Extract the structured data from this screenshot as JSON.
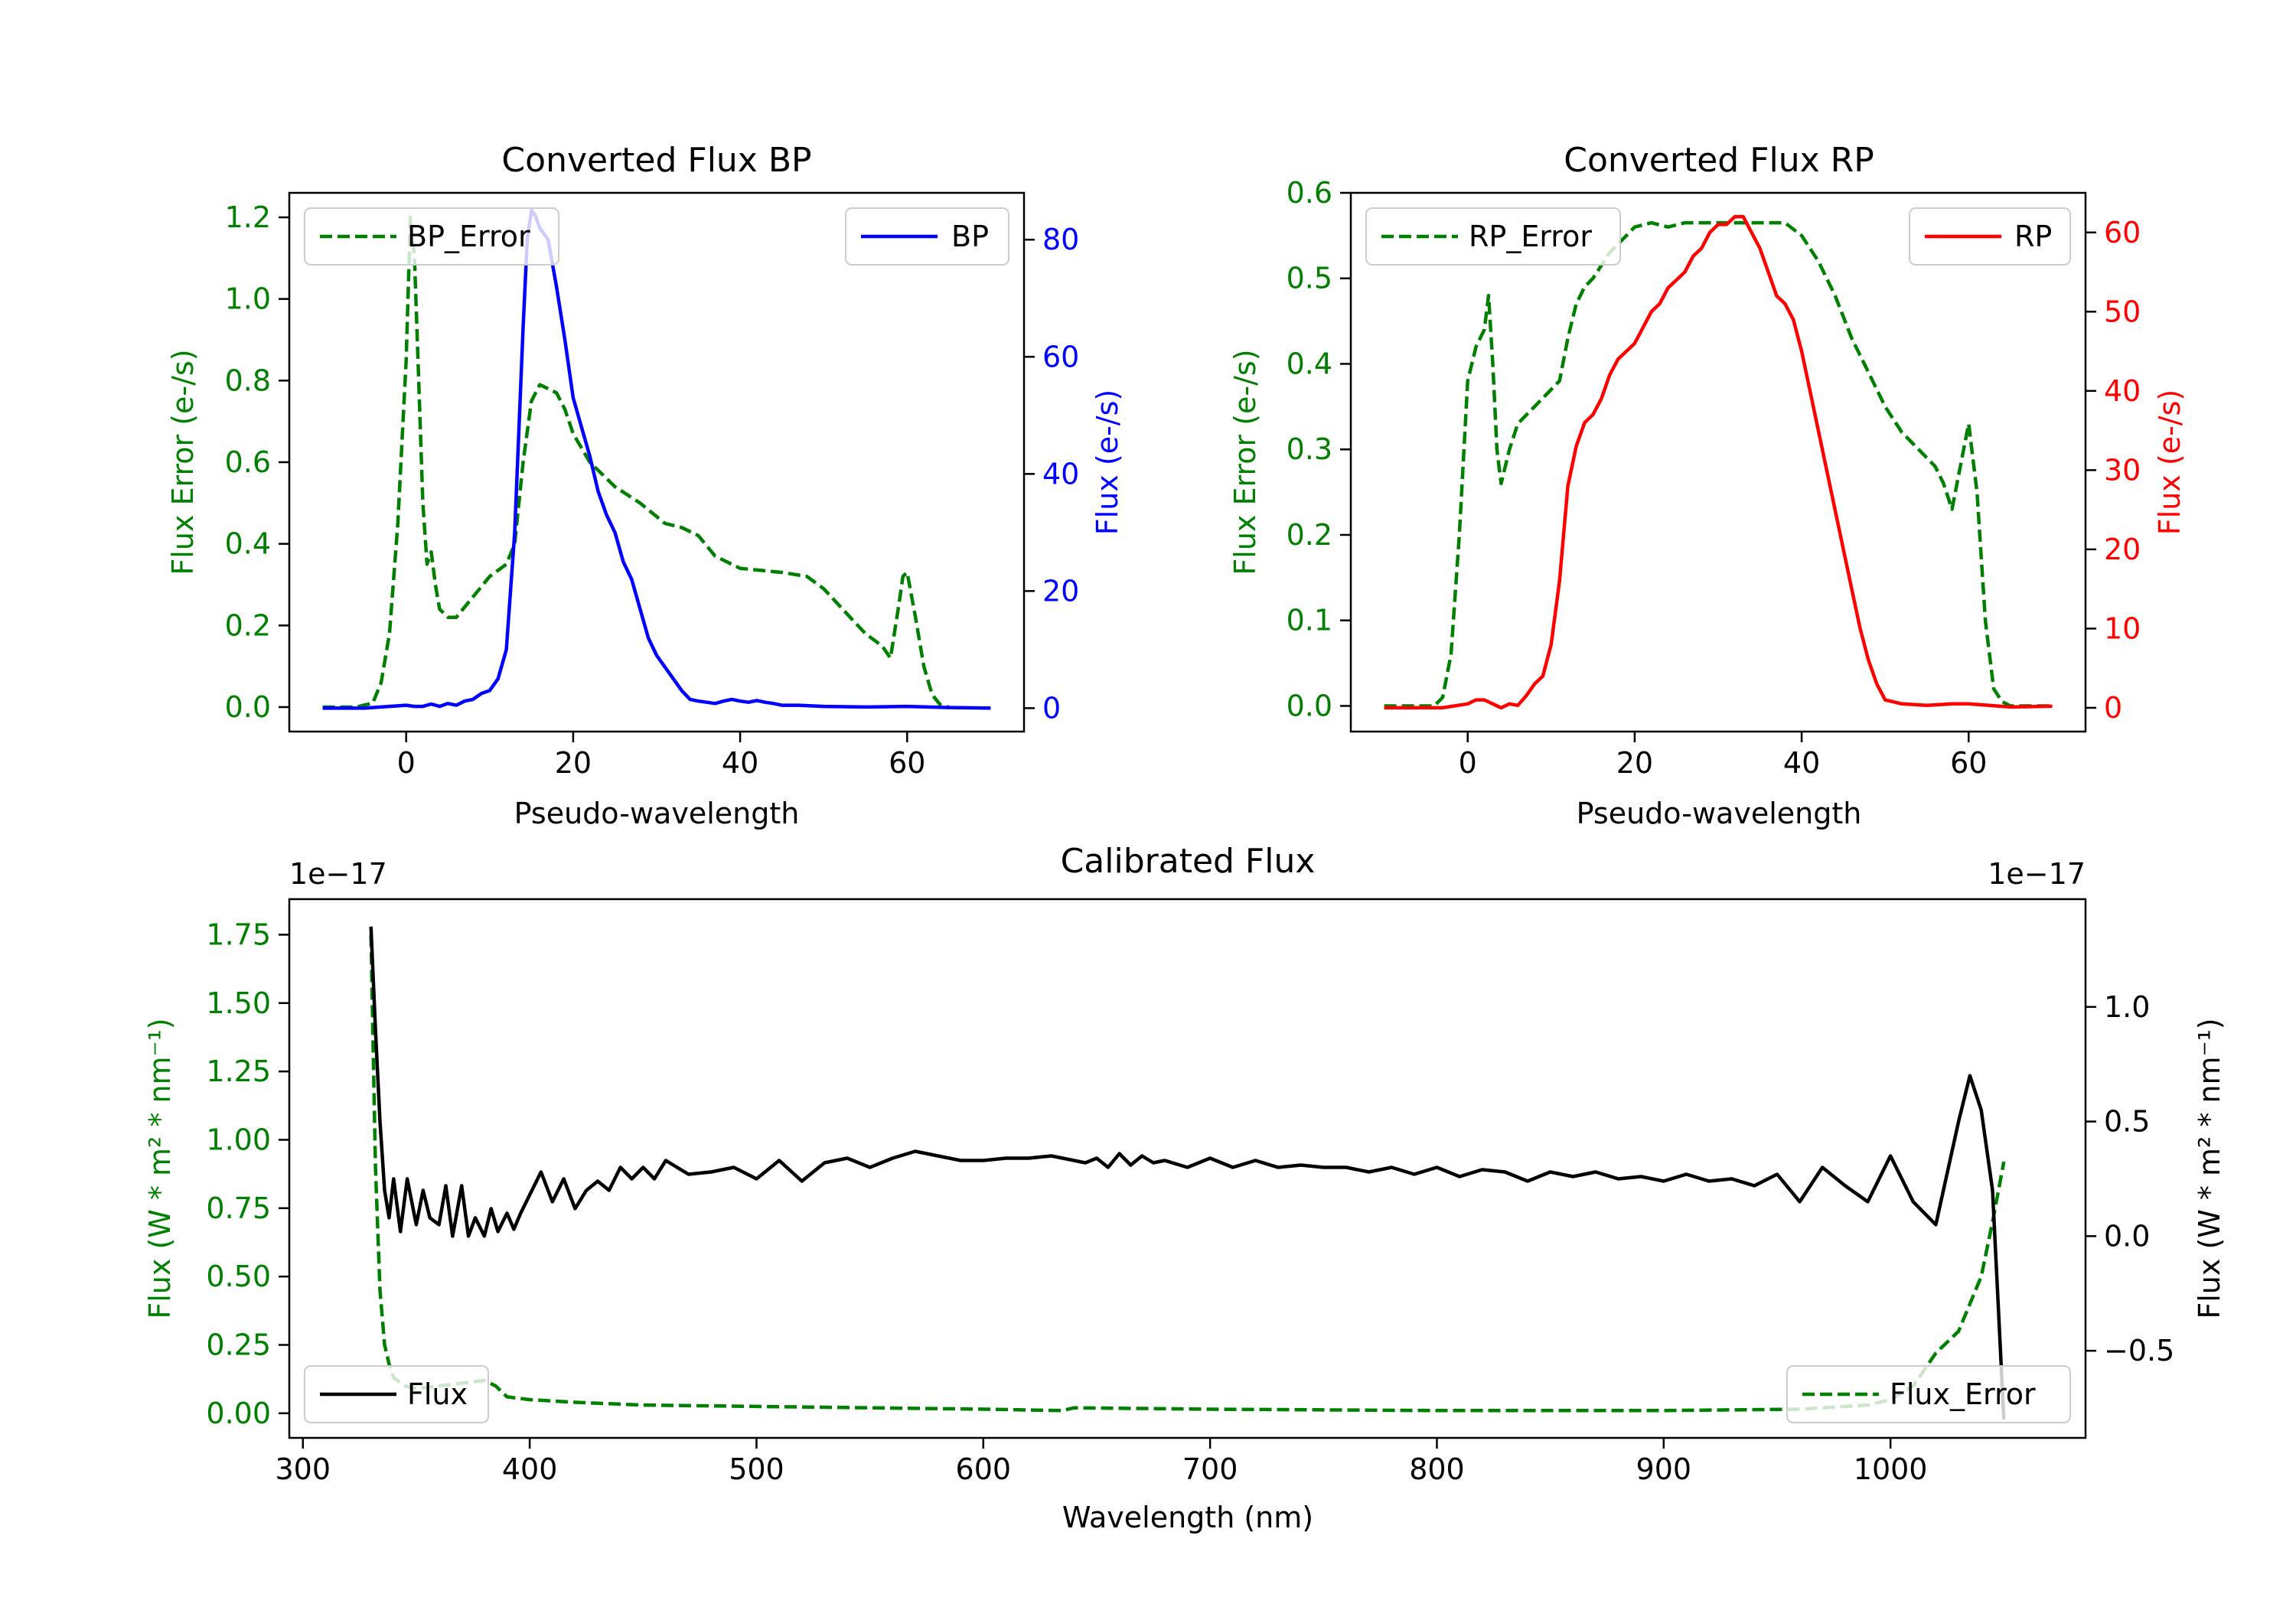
{
  "chart_data": [
    {
      "type": "line",
      "title": "Converted Flux BP",
      "xlabel": "Pseudo-wavelength",
      "ylabel_left": "Flux Error (e-/s)",
      "ylabel_right": "Flux (e-/s)",
      "xlim": [
        -14,
        74
      ],
      "ylim_left": [
        -0.06,
        1.26
      ],
      "ylim_right": [
        -4,
        88
      ],
      "x_ticks": [
        0,
        20,
        40,
        60
      ],
      "y_ticks_left": [
        0.0,
        0.2,
        0.4,
        0.6,
        0.8,
        1.0,
        1.2
      ],
      "y_ticks_left_labels": [
        "0.0",
        "0.2",
        "0.4",
        "0.6",
        "0.8",
        "1.0",
        "1.2"
      ],
      "y_ticks_right": [
        0,
        20,
        40,
        60,
        80
      ],
      "y_ticks_right_labels": [
        "0",
        "20",
        "40",
        "60",
        "80"
      ],
      "legend_left": {
        "label": "BP_Error",
        "placement": "upper left"
      },
      "legend_right": {
        "label": "BP",
        "placement": "upper right"
      },
      "colors": {
        "error": "#008000",
        "flux": "#0000ff",
        "left_axis": "#008000",
        "right_axis": "#0000ff"
      },
      "series": [
        {
          "name": "BP_Error",
          "axis": "left",
          "style": "dashed",
          "x": [
            -10,
            -6,
            -4,
            -3,
            -2,
            -1,
            0,
            0.5,
            1,
            1.5,
            2,
            2.5,
            3,
            3.5,
            4,
            5,
            6,
            8,
            10,
            12,
            13,
            14,
            15,
            16,
            17,
            18,
            19,
            20,
            22,
            25,
            28,
            31,
            33,
            35,
            37,
            40,
            45,
            48,
            50,
            55,
            57,
            58,
            59,
            59.5,
            60,
            61,
            62,
            63,
            64,
            65
          ],
          "y": [
            0,
            0,
            0.01,
            0.06,
            0.18,
            0.45,
            0.85,
            1.2,
            1.1,
            0.8,
            0.5,
            0.35,
            0.38,
            0.3,
            0.24,
            0.22,
            0.22,
            0.27,
            0.32,
            0.35,
            0.4,
            0.6,
            0.75,
            0.79,
            0.78,
            0.77,
            0.73,
            0.67,
            0.6,
            0.54,
            0.5,
            0.45,
            0.44,
            0.42,
            0.37,
            0.34,
            0.33,
            0.32,
            0.29,
            0.18,
            0.15,
            0.12,
            0.25,
            0.32,
            0.33,
            0.22,
            0.1,
            0.03,
            0.005,
            0
          ]
        },
        {
          "name": "BP",
          "axis": "right",
          "style": "solid",
          "x": [
            -10,
            -5,
            -2,
            0,
            1,
            2,
            3,
            4,
            5,
            6,
            7,
            8,
            9,
            10,
            11,
            12,
            13,
            14,
            14.5,
            15,
            15.5,
            16,
            17,
            18,
            19,
            20,
            21,
            22,
            23,
            24,
            25,
            26,
            27,
            28,
            29,
            30,
            31,
            32,
            33,
            34,
            35,
            36,
            37,
            38,
            39,
            40,
            41,
            42,
            43,
            44,
            45,
            47,
            50,
            55,
            60,
            65,
            70
          ],
          "y": [
            0,
            0,
            0.3,
            0.5,
            0.3,
            0.3,
            0.7,
            0.3,
            0.8,
            0.5,
            1.2,
            1.5,
            2.5,
            3,
            5,
            10,
            30,
            65,
            80,
            85,
            84,
            82,
            80,
            72,
            63,
            53,
            48,
            43,
            37,
            33,
            30,
            25,
            22,
            17,
            12,
            9,
            7,
            5,
            3,
            1.5,
            1.2,
            1,
            0.8,
            1.2,
            1.5,
            1.2,
            1,
            1.3,
            1,
            0.8,
            0.5,
            0.5,
            0.3,
            0.2,
            0.3,
            0.1,
            0
          ]
        }
      ]
    },
    {
      "type": "line",
      "title": "Converted Flux RP",
      "xlabel": "Pseudo-wavelength",
      "ylabel_left": "Flux Error (e-/s)",
      "ylabel_right": "Flux (e-/s)",
      "xlim": [
        -14,
        74
      ],
      "ylim_left": [
        -0.03,
        0.6
      ],
      "ylim_right": [
        -3,
        65
      ],
      "x_ticks": [
        0,
        20,
        40,
        60
      ],
      "y_ticks_left": [
        0.0,
        0.1,
        0.2,
        0.3,
        0.4,
        0.5,
        0.6
      ],
      "y_ticks_left_labels": [
        "0.0",
        "0.1",
        "0.2",
        "0.3",
        "0.4",
        "0.5",
        "0.6"
      ],
      "y_ticks_right": [
        0,
        10,
        20,
        30,
        40,
        50,
        60
      ],
      "y_ticks_right_labels": [
        "0",
        "10",
        "20",
        "30",
        "40",
        "50",
        "60"
      ],
      "legend_left": {
        "label": "RP_Error",
        "placement": "upper left"
      },
      "legend_right": {
        "label": "RP",
        "placement": "upper right"
      },
      "colors": {
        "error": "#008000",
        "flux": "#ff0000",
        "left_axis": "#008000",
        "right_axis": "#ff0000"
      },
      "series": [
        {
          "name": "RP_Error",
          "axis": "left",
          "style": "dashed",
          "x": [
            -10,
            -4,
            -3,
            -2,
            -1,
            0,
            1,
            2,
            2.5,
            3,
            3.5,
            4,
            5,
            6,
            7,
            8,
            9,
            10,
            11,
            12,
            13,
            14,
            15,
            17,
            19,
            20,
            22,
            24,
            26,
            28,
            30,
            32,
            34,
            36,
            38,
            40,
            42,
            44,
            46,
            48,
            50,
            52,
            54,
            55,
            56,
            57,
            58,
            59,
            60,
            61,
            62,
            63,
            64,
            65,
            70
          ],
          "y": [
            0,
            0,
            0.01,
            0.06,
            0.2,
            0.38,
            0.42,
            0.44,
            0.48,
            0.4,
            0.3,
            0.26,
            0.3,
            0.33,
            0.34,
            0.35,
            0.36,
            0.37,
            0.38,
            0.43,
            0.47,
            0.49,
            0.5,
            0.53,
            0.55,
            0.56,
            0.565,
            0.56,
            0.565,
            0.565,
            0.565,
            0.565,
            0.565,
            0.565,
            0.565,
            0.55,
            0.52,
            0.48,
            0.43,
            0.39,
            0.35,
            0.32,
            0.3,
            0.29,
            0.28,
            0.26,
            0.23,
            0.28,
            0.33,
            0.25,
            0.1,
            0.02,
            0.005,
            0,
            0
          ]
        },
        {
          "name": "RP",
          "axis": "right",
          "style": "solid",
          "x": [
            -10,
            -3,
            0,
            1,
            2,
            3,
            4,
            5,
            6,
            7,
            8,
            9,
            10,
            11,
            12,
            13,
            14,
            15,
            16,
            17,
            18,
            19,
            20,
            21,
            22,
            23,
            24,
            25,
            26,
            27,
            28,
            29,
            30,
            31,
            32,
            33,
            34,
            35,
            36,
            37,
            38,
            39,
            40,
            41,
            42,
            43,
            44,
            45,
            46,
            47,
            48,
            49,
            50,
            52,
            55,
            58,
            60,
            65,
            70
          ],
          "y": [
            0,
            0,
            0.5,
            1,
            1,
            0.5,
            0,
            0.5,
            0.3,
            1.5,
            3,
            4,
            8,
            16,
            28,
            33,
            36,
            37,
            39,
            42,
            44,
            45,
            46,
            48,
            50,
            51,
            53,
            54,
            55,
            57,
            58,
            60,
            61,
            61,
            62,
            62,
            60,
            58,
            55,
            52,
            51,
            49,
            45,
            40,
            35,
            30,
            25,
            20,
            15,
            10,
            6,
            3,
            1,
            0.5,
            0.3,
            0.5,
            0.5,
            0.1,
            0.2
          ]
        }
      ]
    },
    {
      "type": "line",
      "title": "Calibrated Flux",
      "xlabel": "Wavelength (nm)",
      "ylabel_left": "Flux (W * m² * nm⁻¹)",
      "ylabel_right": "Flux (W * m² * nm⁻¹)",
      "left_offset_text": "1e−17",
      "right_offset_text": "1e−17",
      "xlim": [
        294,
        1086
      ],
      "ylim_left": [
        -0.09,
        1.88
      ],
      "ylim_right": [
        -0.88,
        1.47
      ],
      "x_ticks": [
        300,
        400,
        500,
        600,
        700,
        800,
        900,
        1000
      ],
      "y_ticks_left": [
        0.0,
        0.25,
        0.5,
        0.75,
        1.0,
        1.25,
        1.5,
        1.75
      ],
      "y_ticks_left_labels": [
        "0.00",
        "0.25",
        "0.50",
        "0.75",
        "1.00",
        "1.25",
        "1.50",
        "1.75"
      ],
      "y_ticks_right": [
        -0.5,
        0.0,
        0.5,
        1.0
      ],
      "y_ticks_right_labels": [
        "−0.5",
        "0.0",
        "0.5",
        "1.0"
      ],
      "legend_left": {
        "label": "Flux",
        "placement": "lower left"
      },
      "legend_right": {
        "label": "Flux_Error",
        "placement": "lower right"
      },
      "colors": {
        "error": "#008000",
        "flux": "#000000",
        "left_axis": "#008000",
        "right_axis": "#000000"
      },
      "series": [
        {
          "name": "Flux_Error",
          "axis": "left",
          "style": "dashed",
          "x": [
            330,
            332,
            334,
            336,
            338,
            340,
            345,
            350,
            360,
            370,
            380,
            385,
            390,
            400,
            420,
            450,
            500,
            550,
            600,
            635,
            640,
            700,
            800,
            900,
            960,
            990,
            1000,
            1010,
            1020,
            1030,
            1040,
            1045,
            1050
          ],
          "y": [
            1.75,
            0.9,
            0.45,
            0.25,
            0.18,
            0.13,
            0.1,
            0.09,
            0.1,
            0.11,
            0.12,
            0.1,
            0.06,
            0.05,
            0.04,
            0.03,
            0.025,
            0.02,
            0.015,
            0.01,
            0.02,
            0.015,
            0.01,
            0.01,
            0.015,
            0.03,
            0.05,
            0.1,
            0.22,
            0.3,
            0.5,
            0.7,
            0.92
          ]
        },
        {
          "name": "Flux",
          "axis": "right",
          "style": "solid",
          "x": [
            330,
            332,
            334,
            336,
            338,
            340,
            343,
            346,
            350,
            353,
            356,
            360,
            363,
            366,
            370,
            373,
            376,
            380,
            383,
            386,
            390,
            393,
            396,
            400,
            405,
            410,
            415,
            420,
            425,
            430,
            435,
            440,
            445,
            450,
            455,
            460,
            470,
            480,
            490,
            500,
            510,
            520,
            530,
            540,
            550,
            560,
            570,
            580,
            590,
            600,
            610,
            620,
            630,
            640,
            645,
            650,
            655,
            660,
            665,
            670,
            675,
            680,
            690,
            700,
            710,
            720,
            730,
            740,
            750,
            760,
            770,
            780,
            790,
            800,
            810,
            820,
            830,
            840,
            850,
            860,
            870,
            880,
            890,
            900,
            910,
            920,
            930,
            940,
            950,
            960,
            970,
            980,
            990,
            1000,
            1010,
            1020,
            1030,
            1035,
            1040,
            1045,
            1050
          ],
          "y": [
            1.35,
            0.9,
            0.5,
            0.2,
            0.08,
            0.25,
            0.02,
            0.25,
            0.05,
            0.2,
            0.08,
            0.05,
            0.22,
            0.0,
            0.22,
            0.0,
            0.08,
            0.0,
            0.12,
            0.02,
            0.1,
            0.03,
            0.1,
            0.18,
            0.28,
            0.15,
            0.25,
            0.12,
            0.2,
            0.24,
            0.2,
            0.3,
            0.25,
            0.3,
            0.25,
            0.33,
            0.27,
            0.28,
            0.3,
            0.25,
            0.33,
            0.24,
            0.32,
            0.34,
            0.3,
            0.34,
            0.37,
            0.35,
            0.33,
            0.33,
            0.34,
            0.34,
            0.35,
            0.33,
            0.32,
            0.34,
            0.3,
            0.36,
            0.31,
            0.35,
            0.32,
            0.33,
            0.3,
            0.34,
            0.3,
            0.33,
            0.3,
            0.31,
            0.3,
            0.3,
            0.28,
            0.3,
            0.27,
            0.3,
            0.26,
            0.29,
            0.28,
            0.24,
            0.28,
            0.26,
            0.28,
            0.25,
            0.26,
            0.24,
            0.27,
            0.24,
            0.25,
            0.22,
            0.27,
            0.15,
            0.3,
            0.22,
            0.15,
            0.35,
            0.15,
            0.05,
            0.5,
            0.7,
            0.55,
            0.2,
            -0.8
          ]
        }
      ]
    }
  ]
}
